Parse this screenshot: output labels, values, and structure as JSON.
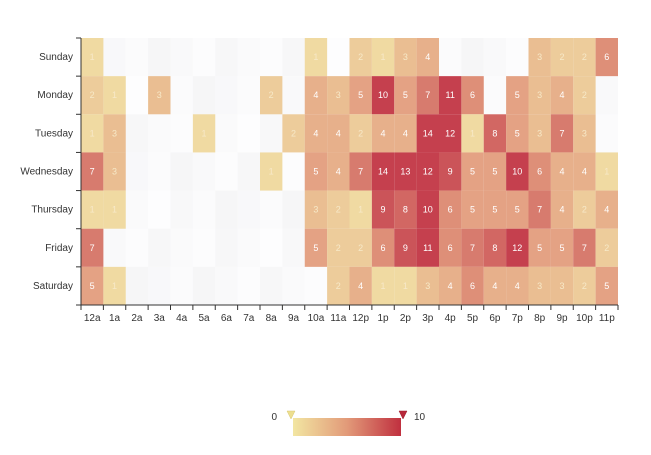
{
  "chart_data": {
    "type": "heatmap",
    "title": "",
    "x_categories": [
      "12a",
      "1a",
      "2a",
      "3a",
      "4a",
      "5a",
      "6a",
      "7a",
      "8a",
      "9a",
      "10a",
      "11a",
      "12p",
      "1p",
      "2p",
      "3p",
      "4p",
      "5p",
      "6p",
      "7p",
      "8p",
      "9p",
      "10p",
      "11p"
    ],
    "y_categories": [
      "Sunday",
      "Monday",
      "Tuesday",
      "Wednesday",
      "Thursday",
      "Friday",
      "Saturday"
    ],
    "values": [
      [
        1,
        0,
        0,
        0,
        0,
        0,
        0,
        0,
        0,
        0,
        1,
        0,
        2,
        1,
        3,
        4,
        0,
        0,
        0,
        0,
        3,
        2,
        2,
        6
      ],
      [
        2,
        1,
        0,
        3,
        0,
        0,
        0,
        0,
        2,
        0,
        4,
        3,
        5,
        10,
        5,
        7,
        11,
        6,
        0,
        5,
        3,
        4,
        2,
        0
      ],
      [
        1,
        3,
        0,
        0,
        0,
        1,
        0,
        0,
        0,
        2,
        4,
        4,
        2,
        4,
        4,
        14,
        12,
        1,
        8,
        5,
        3,
        7,
        3,
        0
      ],
      [
        7,
        3,
        0,
        0,
        0,
        0,
        0,
        0,
        1,
        0,
        5,
        4,
        7,
        14,
        13,
        12,
        9,
        5,
        5,
        10,
        6,
        4,
        4,
        1
      ],
      [
        1,
        1,
        0,
        0,
        0,
        0,
        0,
        0,
        0,
        0,
        3,
        2,
        1,
        9,
        8,
        10,
        6,
        5,
        5,
        5,
        7,
        4,
        2,
        4
      ],
      [
        7,
        0,
        0,
        0,
        0,
        0,
        0,
        0,
        0,
        0,
        5,
        2,
        2,
        6,
        9,
        11,
        6,
        7,
        8,
        12,
        5,
        5,
        7,
        2
      ],
      [
        5,
        1,
        0,
        0,
        0,
        0,
        0,
        0,
        0,
        0,
        0,
        2,
        4,
        1,
        1,
        3,
        4,
        6,
        4,
        4,
        3,
        3,
        2,
        5
      ]
    ],
    "visual_map": {
      "min": 0,
      "max": 10,
      "min_label": "0",
      "max_label": "10",
      "colors": [
        "#f2e6a2",
        "#e29a79",
        "#c0303f"
      ]
    }
  }
}
